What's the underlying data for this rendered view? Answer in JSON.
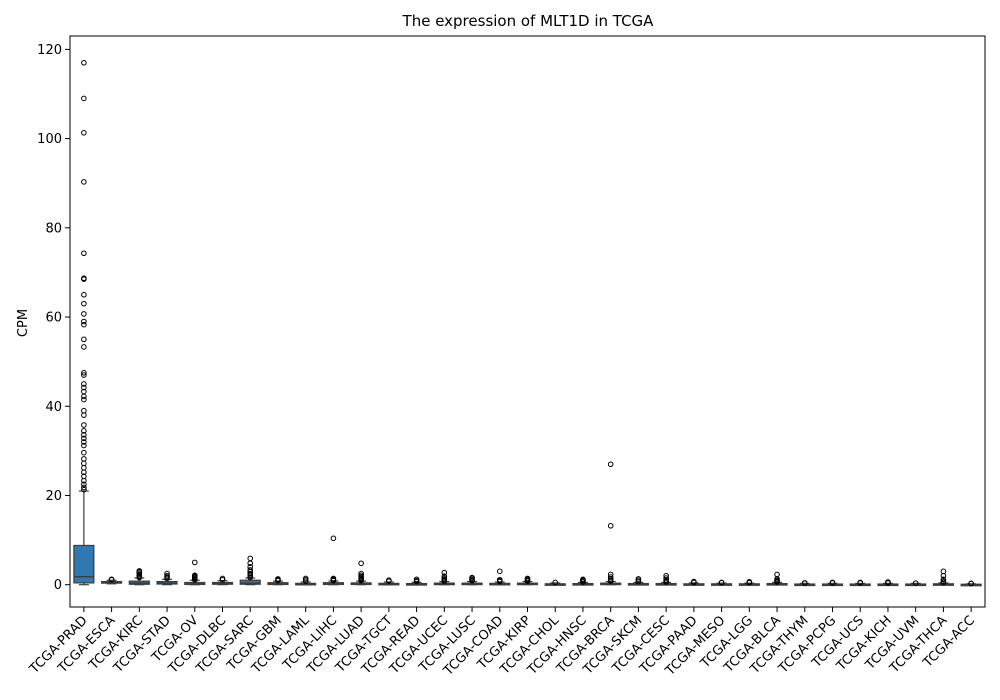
{
  "chart_data": {
    "type": "box",
    "title": "The expression of MLT1D in TCGA",
    "xlabel": "",
    "ylabel": "CPM",
    "ylim": [
      -5,
      123
    ],
    "yticks": [
      0,
      20,
      40,
      60,
      80,
      100,
      120
    ],
    "grid": false,
    "legend": "none",
    "box_color": "#2f78b1",
    "categories": [
      "TCGA-PRAD",
      "TCGA-ESCA",
      "TCGA-KIRC",
      "TCGA-STAD",
      "TCGA-OV",
      "TCGA-DLBC",
      "TCGA-SARC",
      "TCGA-GBM",
      "TCGA-LAML",
      "TCGA-LIHC",
      "TCGA-LUAD",
      "TCGA-TGCT",
      "TCGA-READ",
      "TCGA-UCEC",
      "TCGA-LUSC",
      "TCGA-COAD",
      "TCGA-KIRP",
      "TCGA-CHOL",
      "TCGA-HNSC",
      "TCGA-BRCA",
      "TCGA-SKCM",
      "TCGA-CESC",
      "TCGA-PAAD",
      "TCGA-MESO",
      "TCGA-LGG",
      "TCGA-BLCA",
      "TCGA-THYM",
      "TCGA-PCPG",
      "TCGA-UCS",
      "TCGA-KICH",
      "TCGA-UVM",
      "TCGA-THCA",
      "TCGA-ACC"
    ],
    "boxes": [
      {
        "whislo": 0,
        "q1": 0.4,
        "med": 1.8,
        "q3": 8.8,
        "whishi": 21.0,
        "fliers": [
          21.3,
          21.8,
          22.5,
          23.3,
          24.3,
          25.2,
          26.2,
          27.2,
          28.2,
          29.6,
          31.2,
          32.0,
          32.8,
          33.6,
          34.5,
          35.8,
          38.0,
          39.0,
          41.5,
          42.2,
          43.3,
          44.2,
          45.0,
          47.0,
          47.5,
          53.3,
          55.0,
          58.3,
          59.0,
          60.7,
          63.0,
          65.0,
          68.5,
          68.7,
          74.3,
          90.3,
          101.3,
          109.0,
          117.0
        ]
      },
      {
        "whislo": 0.2,
        "q1": 0.35,
        "med": 0.5,
        "q3": 0.7,
        "whishi": 1.0,
        "fliers": [
          1.1,
          1.2
        ]
      },
      {
        "whislo": 0,
        "q1": 0.1,
        "med": 0.35,
        "q3": 0.8,
        "whishi": 1.5,
        "fliers": [
          1.6,
          1.8,
          2.0,
          2.3,
          2.6,
          2.9,
          3.1
        ]
      },
      {
        "whislo": 0,
        "q1": 0.15,
        "med": 0.35,
        "q3": 0.7,
        "whishi": 1.2,
        "fliers": [
          1.4,
          1.7,
          2.0,
          2.5
        ]
      },
      {
        "whislo": 0,
        "q1": 0.05,
        "med": 0.2,
        "q3": 0.5,
        "whishi": 1.0,
        "fliers": [
          1.1,
          1.3,
          1.5,
          1.7,
          1.9,
          2.1,
          5.0
        ]
      },
      {
        "whislo": 0,
        "q1": 0.1,
        "med": 0.25,
        "q3": 0.5,
        "whishi": 0.9,
        "fliers": [
          1.1,
          1.4
        ]
      },
      {
        "whislo": 0,
        "q1": 0.1,
        "med": 0.35,
        "q3": 1.0,
        "whishi": 1.5,
        "fliers": [
          1.6,
          1.9,
          2.2,
          2.5,
          2.9,
          3.3,
          4.0,
          4.8,
          5.9
        ]
      },
      {
        "whislo": 0,
        "q1": 0.05,
        "med": 0.2,
        "q3": 0.45,
        "whishi": 0.8,
        "fliers": [
          0.9,
          1.1,
          1.3
        ]
      },
      {
        "whislo": 0,
        "q1": 0.05,
        "med": 0.15,
        "q3": 0.3,
        "whishi": 0.6,
        "fliers": [
          0.8,
          1.1,
          1.4
        ]
      },
      {
        "whislo": 0,
        "q1": 0.05,
        "med": 0.2,
        "q3": 0.45,
        "whishi": 0.8,
        "fliers": [
          0.9,
          1.0,
          1.2,
          1.4,
          10.4
        ]
      },
      {
        "whislo": 0,
        "q1": 0.05,
        "med": 0.15,
        "q3": 0.4,
        "whishi": 0.8,
        "fliers": [
          0.9,
          1.1,
          1.3,
          1.5,
          1.8,
          2.1,
          2.5,
          4.8
        ]
      },
      {
        "whislo": 0,
        "q1": 0.05,
        "med": 0.15,
        "q3": 0.3,
        "whishi": 0.6,
        "fliers": [
          0.8,
          1.0
        ]
      },
      {
        "whislo": 0,
        "q1": 0.03,
        "med": 0.1,
        "q3": 0.25,
        "whishi": 0.5,
        "fliers": [
          0.7,
          0.9,
          1.2
        ]
      },
      {
        "whislo": 0,
        "q1": 0.05,
        "med": 0.15,
        "q3": 0.35,
        "whishi": 0.7,
        "fliers": [
          0.8,
          1.0,
          1.2,
          1.5,
          1.9,
          2.7
        ]
      },
      {
        "whislo": 0,
        "q1": 0.05,
        "med": 0.15,
        "q3": 0.35,
        "whishi": 0.7,
        "fliers": [
          0.9,
          1.1,
          1.4,
          1.6
        ]
      },
      {
        "whislo": 0,
        "q1": 0.05,
        "med": 0.15,
        "q3": 0.3,
        "whishi": 0.6,
        "fliers": [
          0.7,
          0.9,
          1.1,
          3.0
        ]
      },
      {
        "whislo": 0,
        "q1": 0.05,
        "med": 0.15,
        "q3": 0.35,
        "whishi": 0.7,
        "fliers": [
          0.8,
          1.0,
          1.2,
          1.4
        ]
      },
      {
        "whislo": 0,
        "q1": 0.03,
        "med": 0.1,
        "q3": 0.2,
        "whishi": 0.4,
        "fliers": [
          0.5
        ]
      },
      {
        "whislo": 0,
        "q1": 0.03,
        "med": 0.1,
        "q3": 0.25,
        "whishi": 0.5,
        "fliers": [
          0.6,
          0.8,
          1.0,
          1.2
        ]
      },
      {
        "whislo": 0,
        "q1": 0.05,
        "med": 0.15,
        "q3": 0.35,
        "whishi": 0.7,
        "fliers": [
          0.8,
          1.0,
          1.3,
          1.7,
          2.3,
          13.2,
          27.0
        ]
      },
      {
        "whislo": 0,
        "q1": 0.03,
        "med": 0.1,
        "q3": 0.25,
        "whishi": 0.5,
        "fliers": [
          0.7,
          1.0,
          1.3
        ]
      },
      {
        "whislo": 0,
        "q1": 0.03,
        "med": 0.1,
        "q3": 0.25,
        "whishi": 0.5,
        "fliers": [
          0.6,
          0.8,
          1.1,
          1.5,
          2.0
        ]
      },
      {
        "whislo": 0,
        "q1": 0.03,
        "med": 0.1,
        "q3": 0.2,
        "whishi": 0.4,
        "fliers": [
          0.5,
          0.6,
          0.7
        ]
      },
      {
        "whislo": 0,
        "q1": 0.02,
        "med": 0.08,
        "q3": 0.2,
        "whishi": 0.35,
        "fliers": [
          0.45,
          0.5
        ]
      },
      {
        "whislo": 0,
        "q1": 0.02,
        "med": 0.08,
        "q3": 0.2,
        "whishi": 0.35,
        "fliers": [
          0.45,
          0.55,
          0.65
        ]
      },
      {
        "whislo": 0,
        "q1": 0.03,
        "med": 0.1,
        "q3": 0.25,
        "whishi": 0.5,
        "fliers": [
          0.6,
          0.8,
          1.0,
          1.3,
          2.3
        ]
      },
      {
        "whislo": 0,
        "q1": 0.02,
        "med": 0.06,
        "q3": 0.15,
        "whishi": 0.3,
        "fliers": [
          0.35,
          0.4
        ]
      },
      {
        "whislo": 0,
        "q1": 0.02,
        "med": 0.06,
        "q3": 0.15,
        "whishi": 0.3,
        "fliers": [
          0.4,
          0.5
        ]
      },
      {
        "whislo": 0,
        "q1": 0.02,
        "med": 0.06,
        "q3": 0.15,
        "whishi": 0.3,
        "fliers": [
          0.4,
          0.5
        ]
      },
      {
        "whislo": 0,
        "q1": 0.02,
        "med": 0.06,
        "q3": 0.15,
        "whishi": 0.3,
        "fliers": [
          0.4,
          0.5,
          0.6
        ]
      },
      {
        "whislo": 0,
        "q1": 0.02,
        "med": 0.06,
        "q3": 0.15,
        "whishi": 0.3,
        "fliers": [
          0.35
        ]
      },
      {
        "whislo": 0,
        "q1": 0.02,
        "med": 0.08,
        "q3": 0.2,
        "whishi": 0.4,
        "fliers": [
          0.5,
          0.8,
          1.2,
          2.0,
          3.0
        ]
      },
      {
        "whislo": 0,
        "q1": 0.01,
        "med": 0.04,
        "q3": 0.1,
        "whishi": 0.2,
        "fliers": [
          0.25,
          0.3
        ]
      }
    ]
  }
}
